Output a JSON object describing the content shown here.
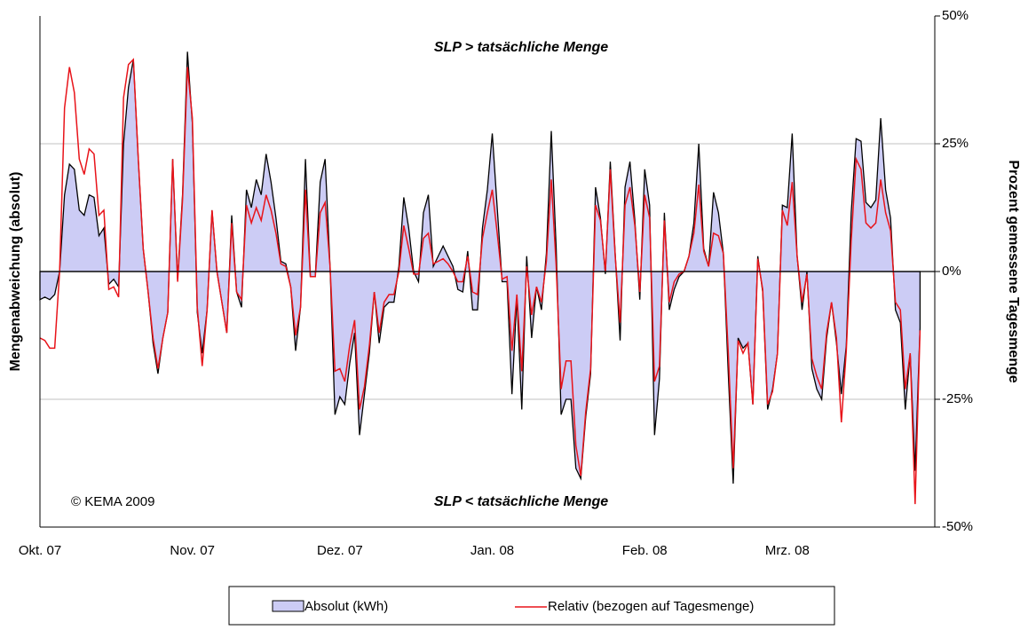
{
  "chart_data": {
    "type": "line",
    "annotations": [
      "SLP > tatsächliche Menge",
      "SLP < tatsächliche Menge",
      "© KEMA 2009"
    ],
    "ylabel": "Mengenabweichung (absolut)",
    "y2label": "Prozent gemessene Tagesmenge",
    "ylim": [
      -50,
      50
    ],
    "y2lim": [
      -50,
      50
    ],
    "y2ticks": [
      {
        "value": 50,
        "label": "50%"
      },
      {
        "value": 25,
        "label": "25%"
      },
      {
        "value": 0,
        "label": "0%"
      },
      {
        "value": -25,
        "label": "-25%"
      },
      {
        "value": -50,
        "label": "-50%"
      }
    ],
    "grid": true,
    "legend": "bottom",
    "categories": [
      "Okt. 07",
      null,
      null,
      null,
      null,
      null,
      null,
      null,
      null,
      null,
      null,
      null,
      null,
      null,
      null,
      null,
      null,
      null,
      null,
      null,
      null,
      null,
      null,
      null,
      null,
      null,
      null,
      null,
      null,
      null,
      null,
      "Nov. 07",
      null,
      null,
      null,
      null,
      null,
      null,
      null,
      null,
      null,
      null,
      null,
      null,
      null,
      null,
      null,
      null,
      null,
      null,
      null,
      null,
      null,
      null,
      null,
      null,
      null,
      null,
      null,
      null,
      null,
      "Dez. 07",
      null,
      null,
      null,
      null,
      null,
      null,
      null,
      null,
      null,
      null,
      null,
      null,
      null,
      null,
      null,
      null,
      null,
      null,
      null,
      null,
      null,
      null,
      null,
      null,
      null,
      null,
      null,
      null,
      null,
      null,
      "Jan. 08",
      null,
      null,
      null,
      null,
      null,
      null,
      null,
      null,
      null,
      null,
      null,
      null,
      null,
      null,
      null,
      null,
      null,
      null,
      null,
      null,
      null,
      null,
      null,
      null,
      null,
      null,
      null,
      null,
      null,
      null,
      "Feb. 08",
      null,
      null,
      null,
      null,
      null,
      null,
      null,
      null,
      null,
      null,
      null,
      null,
      null,
      null,
      null,
      null,
      null,
      null,
      null,
      null,
      null,
      null,
      null,
      null,
      null,
      null,
      null,
      null,
      "Mrz. 08",
      null,
      null,
      null,
      null,
      null,
      null,
      null,
      null,
      null,
      null,
      null,
      null,
      null,
      null,
      null,
      null,
      null,
      null,
      null,
      null,
      null,
      null,
      null,
      null,
      null,
      null,
      null
    ],
    "series": [
      {
        "name": "Absolut (kWh)",
        "type": "area",
        "color": "#ccccf5",
        "values": [
          -5.5,
          -5,
          -5.5,
          -4.5,
          0,
          15,
          21,
          20,
          12,
          11,
          15,
          14.5,
          7,
          8.5,
          -2.5,
          -1.5,
          -3,
          25,
          36,
          41.5,
          22,
          4.5,
          -4,
          -14,
          -20,
          -13,
          -8,
          22,
          -1.5,
          15,
          43,
          29,
          -8,
          -16,
          -7.5,
          12,
          0,
          -6,
          -12,
          11,
          -4,
          -7,
          16,
          12.5,
          18,
          15,
          23,
          17.5,
          10.5,
          2,
          1.5,
          -3,
          -15.5,
          -7,
          22,
          -1,
          -1,
          17.5,
          22,
          1,
          -28,
          -24.5,
          -26,
          -18,
          -12,
          -32,
          -24,
          -16,
          -4,
          -14,
          -7,
          -6,
          -6,
          1,
          14.5,
          8.5,
          0,
          -2,
          11.5,
          15,
          1,
          3,
          5,
          3,
          1,
          -3.5,
          -4,
          4,
          -7.5,
          -7.5,
          8.5,
          16,
          27,
          12.5,
          -2,
          -2,
          -24,
          -5,
          -27,
          3,
          -13,
          -3,
          -7.5,
          3.5,
          27.5,
          4.5,
          -28,
          -25,
          -25,
          -38.5,
          -40.5,
          -28.5,
          -20,
          16.5,
          10.5,
          -0.5,
          21.5,
          3.5,
          -13.5,
          16.5,
          21.5,
          10,
          -5.5,
          20,
          13,
          -32,
          -21,
          11.5,
          -7.5,
          -3.5,
          -1,
          0,
          3,
          9.5,
          25,
          4.5,
          1,
          15.5,
          11.5,
          3.5,
          -20,
          -41.5,
          -13,
          -15,
          -14,
          -26,
          3,
          -4,
          -27,
          -23,
          -16,
          13,
          12.5,
          27,
          3,
          -7.5,
          0,
          -19,
          -23,
          -25,
          -13,
          -6,
          -14,
          -24,
          -14.5,
          11.5,
          26,
          25.5,
          13.5,
          12.5,
          14,
          30,
          16,
          10.5,
          -7.5,
          -10,
          -27,
          -16,
          -39,
          -11
        ]
      },
      {
        "name": "Relativ (bezogen auf Tagesmenge)",
        "type": "line",
        "axis": "y2",
        "color": "#e8141a",
        "values": [
          -13,
          -13.5,
          -15,
          -15,
          0,
          32,
          40,
          35,
          22,
          19,
          24,
          23,
          11,
          12,
          -3.5,
          -3,
          -5,
          34,
          40.5,
          41.5,
          22,
          4.5,
          -4,
          -13,
          -19,
          -13,
          -8,
          22,
          -2,
          14,
          40,
          30,
          -7,
          -18.5,
          -7.5,
          12,
          0,
          -6,
          -12,
          9.5,
          -4,
          -5.5,
          13,
          9.5,
          12.5,
          10,
          15,
          12,
          7.5,
          1.5,
          1,
          -3,
          -12.5,
          -7,
          16,
          -1,
          -1,
          11.5,
          13.5,
          1,
          -19.5,
          -19,
          -21.5,
          -14.5,
          -9.5,
          -27,
          -22.5,
          -14.5,
          -4,
          -12,
          -6,
          -4.5,
          -4.5,
          0,
          9,
          4.5,
          -0.5,
          -0.5,
          6.5,
          7.5,
          1.5,
          2,
          2.5,
          1.5,
          0,
          -2,
          -2,
          3,
          -4,
          -4.5,
          6.5,
          11.5,
          16,
          7.5,
          -1.5,
          -1,
          -15.5,
          -4.5,
          -19.5,
          1,
          -8.5,
          -3,
          -6,
          2,
          18,
          1,
          -23,
          -17.5,
          -17.5,
          -34,
          -40,
          -27.5,
          -19,
          13,
          10,
          0,
          20,
          3,
          -10,
          13,
          16.5,
          9,
          -4,
          15,
          10.5,
          -21.5,
          -18.5,
          10,
          -6,
          -2,
          -0.5,
          0,
          3,
          7.5,
          17,
          4,
          1,
          7.5,
          7,
          3.5,
          -16,
          -38.5,
          -13.5,
          -16,
          -14,
          -26,
          2.5,
          -3.5,
          -26,
          -23.5,
          -16,
          12,
          9,
          17.5,
          3,
          -6,
          -0.5,
          -17,
          -20.5,
          -23,
          -12,
          -6,
          -13,
          -29.5,
          -15.5,
          6,
          22,
          20,
          9.5,
          8.5,
          9.5,
          18,
          11.5,
          8,
          -6,
          -7.5,
          -23,
          -16,
          -45.5,
          -11.5
        ]
      }
    ]
  }
}
